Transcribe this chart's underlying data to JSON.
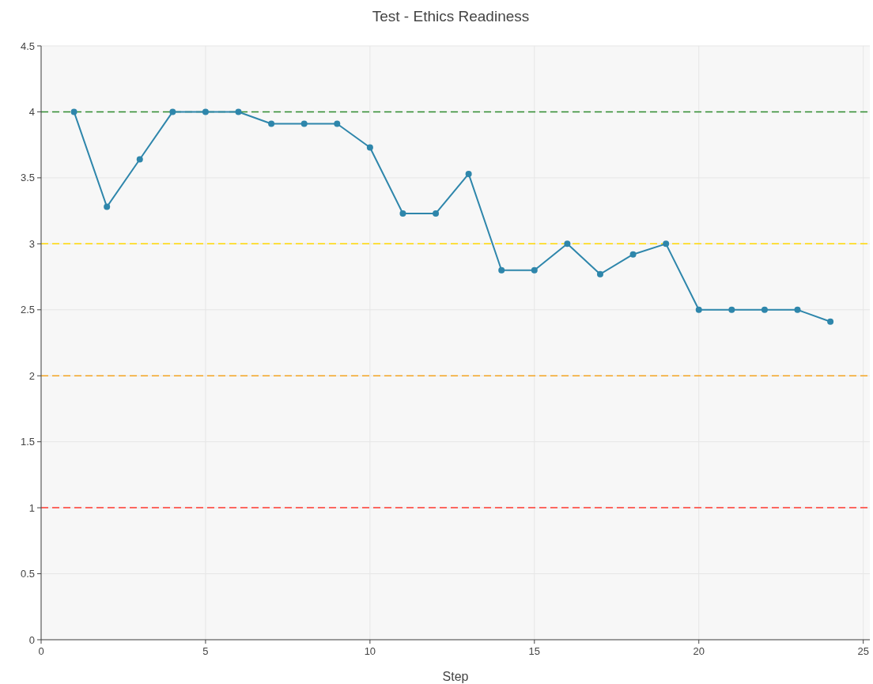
{
  "chart_data": {
    "type": "line",
    "title": "Test - Ethics Readiness",
    "xlabel": "Step",
    "x": [
      1,
      2,
      3,
      4,
      5,
      6,
      7,
      8,
      9,
      10,
      11,
      12,
      13,
      14,
      15,
      16,
      17,
      18,
      19,
      20,
      21,
      22,
      23,
      24
    ],
    "series": [
      {
        "color": "#2e86ab",
        "values": [
          4,
          3.28,
          3.64,
          4,
          4,
          4,
          3.91,
          3.91,
          3.91,
          3.73,
          3.23,
          3.23,
          3.53,
          2.8,
          2.8,
          3,
          2.77,
          2.92,
          3,
          2.5,
          2.5,
          2.5,
          2.5,
          2.41
        ]
      }
    ],
    "xlim": [
      0,
      25.2
    ],
    "xticks": [
      0,
      5,
      10,
      15,
      20,
      25
    ],
    "ylim": [
      0,
      4.5
    ],
    "yticks": [
      0,
      0.5,
      1,
      1.5,
      2,
      2.5,
      3,
      3.5,
      4,
      4.5
    ],
    "ref_lines": [
      {
        "axis": "y",
        "value": 4,
        "color": "#2e8b2e",
        "line_style": "dashed"
      },
      {
        "axis": "y",
        "value": 3,
        "color": "#ffd700",
        "line_style": "dashed"
      },
      {
        "axis": "y",
        "value": 2,
        "color": "#f5a623",
        "line_style": "dashed"
      },
      {
        "axis": "y",
        "value": 1,
        "color": "#ff3b30",
        "line_style": "dashed"
      }
    ],
    "grid": true,
    "marker": "circle",
    "line_style": "solid"
  }
}
